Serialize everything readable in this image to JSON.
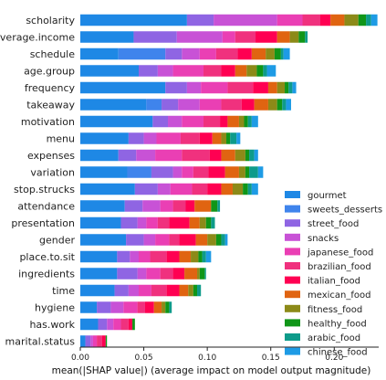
{
  "chart_data": {
    "type": "bar",
    "stacked": true,
    "orientation": "horizontal",
    "xlabel": "mean(|SHAP value|) (average impact on model output magnitude)",
    "ylabel": "",
    "title": "",
    "xlim": [
      0,
      0.235
    ],
    "xticks": [
      "0.00",
      "0.05",
      "0.10",
      "0.15",
      "0.20"
    ],
    "xtick_values": [
      0,
      0.05,
      0.1,
      0.15,
      0.2
    ],
    "categories": [
      "scholarity",
      "average.income",
      "schedule",
      "age.group",
      "frequency",
      "takeaway",
      "motivation",
      "menu",
      "expenses",
      "variation",
      "stop.strucks",
      "attendance",
      "presentation",
      "gender",
      "place.to.sit",
      "ingredients",
      "time",
      "hygiene",
      "has.work",
      "marital.status"
    ],
    "legend_position": "lower-right",
    "series": [
      {
        "name": "gourmet",
        "color": "#1e88e5",
        "values": [
          0.084,
          0.042,
          0.03,
          0.046,
          0.067,
          0.052,
          0.057,
          0.038,
          0.03,
          0.037,
          0.043,
          0.035,
          0.032,
          0.036,
          0.029,
          0.029,
          0.027,
          0.013,
          0.014,
          0.004
        ]
      },
      {
        "name": "sweets_desserts",
        "color": "#3f84ec",
        "values": [
          0.0,
          0.0,
          0.037,
          0.0,
          0.0,
          0.012,
          0.0,
          0.0,
          0.0,
          0.019,
          0.0,
          0.0,
          0.0,
          0.0,
          0.0,
          0.0,
          0.0,
          0.0,
          0.0,
          0.0
        ]
      },
      {
        "name": "street_food",
        "color": "#8f65e3",
        "values": [
          0.021,
          0.034,
          0.013,
          0.015,
          0.017,
          0.013,
          0.012,
          0.012,
          0.014,
          0.017,
          0.018,
          0.014,
          0.013,
          0.014,
          0.01,
          0.016,
          0.011,
          0.011,
          0.007,
          0.004
        ]
      },
      {
        "name": "snacks",
        "color": "#c852d6",
        "values": [
          0.05,
          0.036,
          0.014,
          0.012,
          0.011,
          0.017,
          0.011,
          0.01,
          0.015,
          0.007,
          0.01,
          0.014,
          0.007,
          0.009,
          0.007,
          0.007,
          0.008,
          0.01,
          0.005,
          0.002
        ]
      },
      {
        "name": "japanese_food",
        "color": "#ea3fb4",
        "values": [
          0.02,
          0.01,
          0.013,
          0.024,
          0.021,
          0.017,
          0.017,
          0.019,
          0.021,
          0.009,
          0.017,
          0.01,
          0.009,
          0.011,
          0.009,
          0.011,
          0.01,
          0.011,
          0.006,
          0.003
        ]
      },
      {
        "name": "brazilian_food",
        "color": "#f0317e",
        "values": [
          0.014,
          0.016,
          0.017,
          0.014,
          0.02,
          0.016,
          0.013,
          0.015,
          0.022,
          0.012,
          0.012,
          0.01,
          0.009,
          0.008,
          0.013,
          0.01,
          0.012,
          0.006,
          0.006,
          0.004
        ]
      },
      {
        "name": "italian_food",
        "color": "#ff0052",
        "values": [
          0.008,
          0.017,
          0.011,
          0.011,
          0.012,
          0.01,
          0.006,
          0.01,
          0.009,
          0.013,
          0.011,
          0.007,
          0.016,
          0.013,
          0.01,
          0.009,
          0.01,
          0.007,
          0.003,
          0.003
        ]
      },
      {
        "name": "mexican_food",
        "color": "#e06411",
        "values": [
          0.011,
          0.01,
          0.011,
          0.009,
          0.007,
          0.011,
          0.009,
          0.007,
          0.011,
          0.011,
          0.009,
          0.013,
          0.008,
          0.009,
          0.009,
          0.01,
          0.007,
          0.006,
          0.0,
          0.0
        ]
      },
      {
        "name": "fitness_food",
        "color": "#8c8a18",
        "values": [
          0.011,
          0.007,
          0.007,
          0.008,
          0.006,
          0.007,
          0.004,
          0.004,
          0.008,
          0.005,
          0.008,
          0.0,
          0.005,
          0.007,
          0.006,
          0.002,
          0.004,
          0.003,
          0.0,
          0.0
        ]
      },
      {
        "name": "healthy_food",
        "color": "#109618",
        "values": [
          0.006,
          0.005,
          0.005,
          0.005,
          0.003,
          0.004,
          0.003,
          0.003,
          0.003,
          0.003,
          0.004,
          0.005,
          0.004,
          0.004,
          0.003,
          0.004,
          0.003,
          0.003,
          0.002,
          0.001
        ]
      },
      {
        "name": "arabic_food",
        "color": "#0e9b8a",
        "values": [
          0.004,
          0.002,
          0.002,
          0.003,
          0.003,
          0.003,
          0.003,
          0.005,
          0.004,
          0.007,
          0.003,
          0.002,
          0.003,
          0.003,
          0.003,
          0.001,
          0.003,
          0.002,
          0.0,
          0.0
        ]
      },
      {
        "name": "chinese_food",
        "color": "#1e9be5",
        "values": [
          0.005,
          0.0,
          0.005,
          0.007,
          0.003,
          0.004,
          0.005,
          0.003,
          0.003,
          0.004,
          0.005,
          0.0,
          0.0,
          0.002,
          0.004,
          0.0,
          0.0,
          0.0,
          0.0,
          0.0
        ]
      }
    ]
  }
}
